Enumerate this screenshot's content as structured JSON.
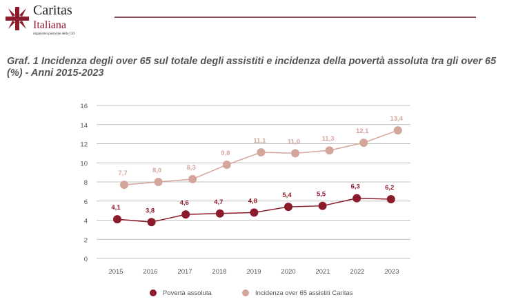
{
  "header": {
    "logo_text": [
      "Caritas",
      "Italiana",
      "organismo pastorale della CEI"
    ]
  },
  "title": "Graf. 1  Incidenza degli over 65 sul totale degli assistiti e incidenza della povertà assoluta tra gli over 65 (%) - Anni 2015-2023",
  "colors": {
    "brand": "#8b1a2b",
    "series1": "#8b1a2b",
    "series2": "#d4a59a",
    "grid": "#bfbfbf"
  },
  "chart_data": {
    "type": "line",
    "title": "Graf. 1  Incidenza degli over 65 sul totale degli assistiti e incidenza della povertà assoluta tra gli over 65 (%) - Anni 2015-2023",
    "categories": [
      "2015",
      "2016",
      "2017",
      "2018",
      "2019",
      "2020",
      "2021",
      "2022",
      "2023"
    ],
    "ylim": [
      0,
      16
    ],
    "yticks": [
      0,
      2,
      4,
      6,
      8,
      10,
      12,
      14,
      16
    ],
    "grid": true,
    "legend": "bottom",
    "series": [
      {
        "name": "Povertà assoluta",
        "values": [
          4.1,
          3.8,
          4.6,
          4.7,
          4.8,
          5.4,
          5.5,
          6.3,
          6.2
        ],
        "labels": [
          "4,1",
          "3,8",
          "4,6",
          "4,7",
          "4,8",
          "5,4",
          "5,5",
          "6,3",
          "6,2"
        ],
        "color": "#8b1a2b"
      },
      {
        "name": "Incidenza over 65 assistiti Caritas",
        "values": [
          7.7,
          8.0,
          8.3,
          9.8,
          11.1,
          11.0,
          11.3,
          12.1,
          13.4
        ],
        "labels": [
          "7,7",
          "8,0",
          "8,3",
          "9,8",
          "11,1",
          "11,0",
          "11,3",
          "12,1",
          "13,4"
        ],
        "color": "#d4a59a"
      }
    ]
  }
}
